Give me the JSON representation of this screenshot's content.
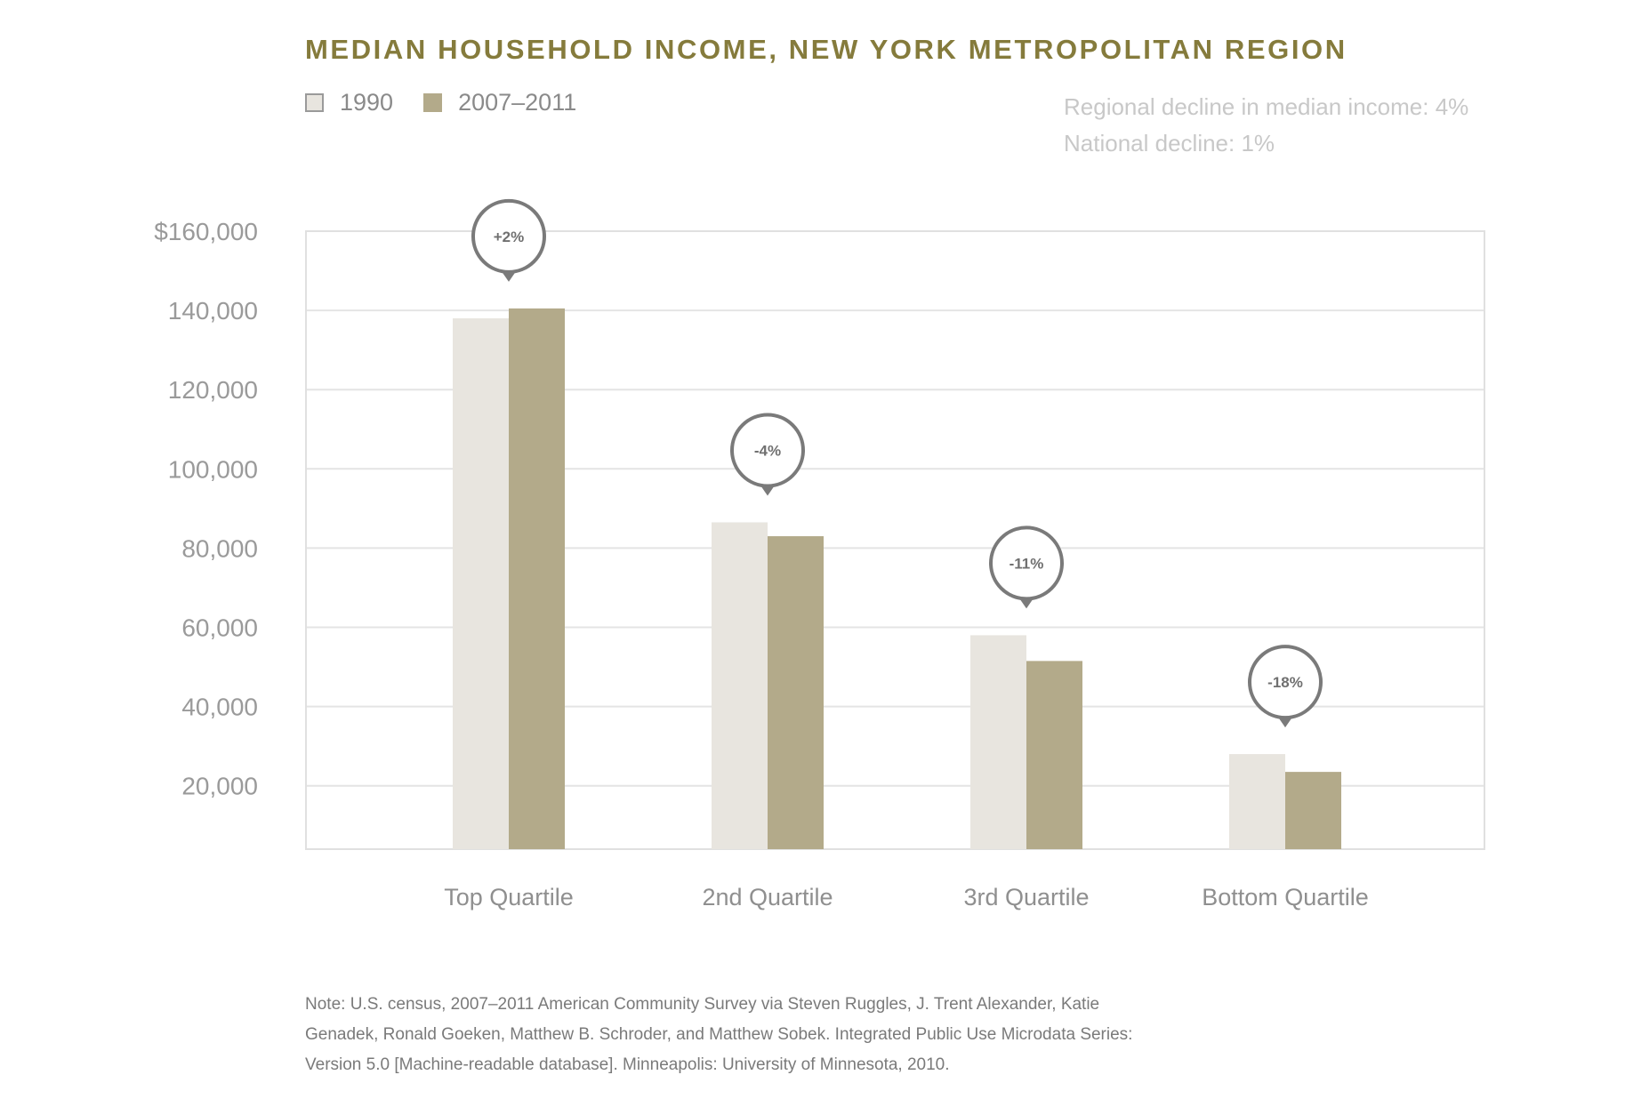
{
  "title": "MEDIAN HOUSEHOLD INCOME, NEW YORK METROPOLITAN REGION",
  "legend": [
    {
      "label": "1990",
      "color": "#e8e5df"
    },
    {
      "label": "2007–2011",
      "color": "#b3aa8a"
    }
  ],
  "summary": {
    "line1": "Regional decline in median income: 4%",
    "line2": "National decline: 1%"
  },
  "footnote": "Note: U.S. census, 2007–2011 American Community Survey via Steven Ruggles, J. Trent Alexander, Katie Genadek, Ronald Goeken, Matthew B. Schroder, and Matthew Sobek. Integrated Public Use Microdata Series: Version 5.0 [Machine-readable database]. Minneapolis: University of Minnesota, 2010.",
  "chart_data": {
    "type": "bar",
    "categories": [
      "Top Quartile",
      "2nd Quartile",
      "3rd Quartile",
      "Bottom Quartile"
    ],
    "series": [
      {
        "name": "1990",
        "color": "#e8e5df",
        "values": [
          138000,
          86500,
          58000,
          28000
        ]
      },
      {
        "name": "2007–2011",
        "color": "#b3aa8a",
        "values": [
          140500,
          83000,
          51500,
          23500
        ]
      }
    ],
    "change_labels": [
      "+2%",
      "-4%",
      "-11%",
      "-18%"
    ],
    "ylim": [
      4000,
      160000
    ],
    "yticks": [
      20000,
      40000,
      60000,
      80000,
      100000,
      120000,
      140000,
      160000
    ],
    "ytick_labels": [
      "20,000",
      "40,000",
      "60,000",
      "80,000",
      "100,000",
      "120,000",
      "140,000",
      "$160,000"
    ],
    "xlabel": "",
    "ylabel": "",
    "grid": true
  }
}
